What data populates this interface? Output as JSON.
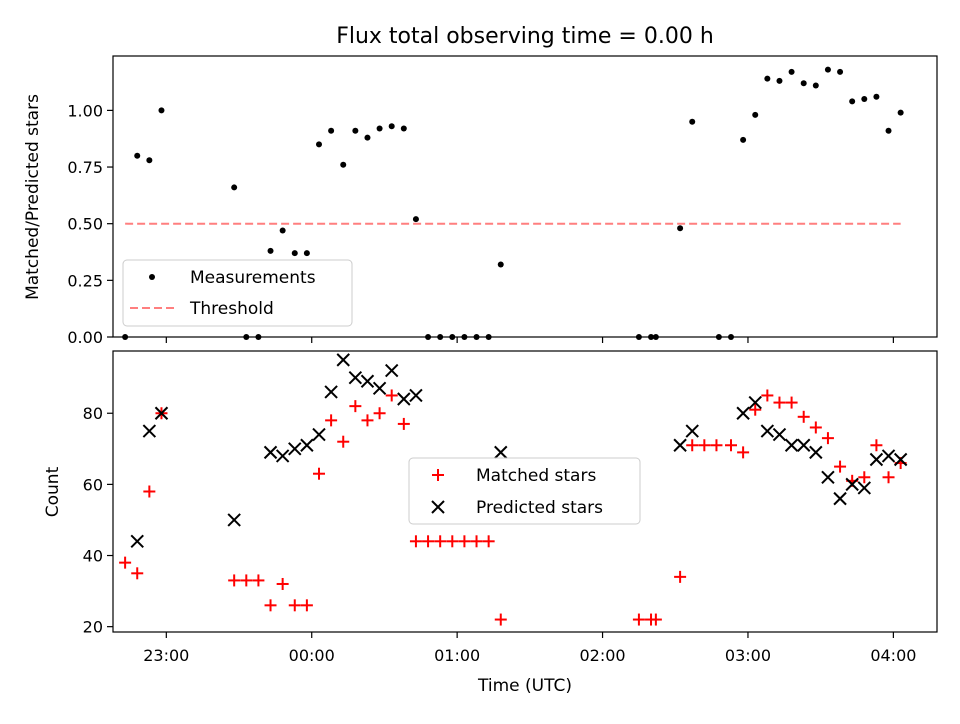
{
  "figure": {
    "title": "Flux total observing time = 0.00 h",
    "xlabel": "Time (UTC)"
  },
  "colors": {
    "measurements": "#000000",
    "threshold": "#ff7f7f",
    "matched": "#ff0000",
    "predicted": "#000000"
  },
  "chart_data": [
    {
      "type": "scatter",
      "panel": "top",
      "ylabel": "Matched/Predicted stars",
      "xlim": [
        "22:38",
        "04:18"
      ],
      "ylim": [
        0,
        1.24
      ],
      "y_ticks": [
        0.0,
        0.25,
        0.5,
        0.75,
        1.0
      ],
      "y_tick_labels": [
        "0.00",
        "0.25",
        "0.50",
        "0.75",
        "1.00"
      ],
      "legend_position": "lower-left",
      "series": [
        {
          "name": "Measurements",
          "marker": "dot",
          "points": [
            [
              "22:43",
              0.0
            ],
            [
              "22:48",
              0.8
            ],
            [
              "22:53",
              0.78
            ],
            [
              "22:58",
              1.0
            ],
            [
              "23:28",
              0.66
            ],
            [
              "23:33",
              0.0
            ],
            [
              "23:38",
              0.0
            ],
            [
              "23:43",
              0.38
            ],
            [
              "23:48",
              0.47
            ],
            [
              "23:53",
              0.37
            ],
            [
              "23:58",
              0.37
            ],
            [
              "00:03",
              0.85
            ],
            [
              "00:08",
              0.91
            ],
            [
              "00:13",
              0.76
            ],
            [
              "00:18",
              0.91
            ],
            [
              "00:23",
              0.88
            ],
            [
              "00:28",
              0.92
            ],
            [
              "00:33",
              0.93
            ],
            [
              "00:38",
              0.92
            ],
            [
              "00:43",
              0.52
            ],
            [
              "00:48",
              0.0
            ],
            [
              "00:53",
              0.0
            ],
            [
              "00:58",
              0.0
            ],
            [
              "01:03",
              0.0
            ],
            [
              "01:08",
              0.0
            ],
            [
              "01:13",
              0.0
            ],
            [
              "01:18",
              0.32
            ],
            [
              "02:15",
              0.0
            ],
            [
              "02:20",
              0.0
            ],
            [
              "02:22",
              0.0
            ],
            [
              "02:32",
              0.48
            ],
            [
              "02:37",
              0.95
            ],
            [
              "02:48",
              0.0
            ],
            [
              "02:53",
              0.0
            ],
            [
              "02:58",
              0.87
            ],
            [
              "03:03",
              0.98
            ],
            [
              "03:08",
              1.14
            ],
            [
              "03:13",
              1.13
            ],
            [
              "03:18",
              1.17
            ],
            [
              "03:23",
              1.12
            ],
            [
              "03:28",
              1.11
            ],
            [
              "03:33",
              1.18
            ],
            [
              "03:38",
              1.17
            ],
            [
              "03:43",
              1.04
            ],
            [
              "03:48",
              1.05
            ],
            [
              "03:53",
              1.06
            ],
            [
              "03:58",
              0.91
            ],
            [
              "04:03",
              0.99
            ]
          ]
        },
        {
          "name": "Threshold",
          "style": "dashed",
          "points": [
            [
              "22:43",
              0.5
            ],
            [
              "04:03",
              0.5
            ]
          ]
        }
      ]
    },
    {
      "type": "scatter",
      "panel": "bottom",
      "ylabel": "Count",
      "xlabel": "Time (UTC)",
      "xlim": [
        "22:38",
        "04:18"
      ],
      "ylim": [
        18.5,
        97.5
      ],
      "x_ticks": [
        "23:00",
        "00:00",
        "01:00",
        "02:00",
        "03:00",
        "04:00"
      ],
      "y_ticks": [
        20,
        40,
        60,
        80
      ],
      "legend_position": "center",
      "series": [
        {
          "name": "Matched stars",
          "marker": "plus",
          "points": [
            [
              "22:43",
              38
            ],
            [
              "22:48",
              35
            ],
            [
              "22:53",
              58
            ],
            [
              "22:58",
              80
            ],
            [
              "23:28",
              33
            ],
            [
              "23:33",
              33
            ],
            [
              "23:38",
              33
            ],
            [
              "23:43",
              26
            ],
            [
              "23:48",
              32
            ],
            [
              "23:53",
              26
            ],
            [
              "23:58",
              26
            ],
            [
              "00:03",
              63
            ],
            [
              "00:08",
              78
            ],
            [
              "00:13",
              72
            ],
            [
              "00:18",
              82
            ],
            [
              "00:23",
              78
            ],
            [
              "00:28",
              80
            ],
            [
              "00:33",
              85
            ],
            [
              "00:38",
              77
            ],
            [
              "00:43",
              44
            ],
            [
              "00:48",
              44
            ],
            [
              "00:53",
              44
            ],
            [
              "00:58",
              44
            ],
            [
              "01:03",
              44
            ],
            [
              "01:08",
              44
            ],
            [
              "01:13",
              44
            ],
            [
              "01:18",
              22
            ],
            [
              "02:15",
              22
            ],
            [
              "02:20",
              22
            ],
            [
              "02:22",
              22
            ],
            [
              "02:32",
              34
            ],
            [
              "02:37",
              71
            ],
            [
              "02:42",
              71
            ],
            [
              "02:47",
              71
            ],
            [
              "02:53",
              71
            ],
            [
              "02:58",
              69
            ],
            [
              "03:03",
              81
            ],
            [
              "03:08",
              85
            ],
            [
              "03:13",
              83
            ],
            [
              "03:18",
              83
            ],
            [
              "03:23",
              79
            ],
            [
              "03:28",
              76
            ],
            [
              "03:33",
              73
            ],
            [
              "03:38",
              65
            ],
            [
              "03:43",
              61
            ],
            [
              "03:48",
              62
            ],
            [
              "03:53",
              71
            ],
            [
              "03:58",
              62
            ],
            [
              "04:03",
              66
            ]
          ]
        },
        {
          "name": "Predicted stars",
          "marker": "x",
          "points": [
            [
              "22:48",
              44
            ],
            [
              "22:53",
              75
            ],
            [
              "22:58",
              80
            ],
            [
              "23:28",
              50
            ],
            [
              "23:43",
              69
            ],
            [
              "23:48",
              68
            ],
            [
              "23:53",
              70
            ],
            [
              "23:58",
              71
            ],
            [
              "00:03",
              74
            ],
            [
              "00:08",
              86
            ],
            [
              "00:13",
              95
            ],
            [
              "00:18",
              90
            ],
            [
              "00:23",
              89
            ],
            [
              "00:28",
              87
            ],
            [
              "00:33",
              92
            ],
            [
              "00:38",
              84
            ],
            [
              "00:43",
              85
            ],
            [
              "01:18",
              69
            ],
            [
              "02:32",
              71
            ],
            [
              "02:37",
              75
            ],
            [
              "02:58",
              80
            ],
            [
              "03:03",
              83
            ],
            [
              "03:08",
              75
            ],
            [
              "03:13",
              74
            ],
            [
              "03:18",
              71
            ],
            [
              "03:23",
              71
            ],
            [
              "03:28",
              69
            ],
            [
              "03:33",
              62
            ],
            [
              "03:38",
              56
            ],
            [
              "03:43",
              60
            ],
            [
              "03:48",
              59
            ],
            [
              "03:53",
              67
            ],
            [
              "03:58",
              68
            ],
            [
              "04:03",
              67
            ]
          ]
        }
      ]
    }
  ]
}
